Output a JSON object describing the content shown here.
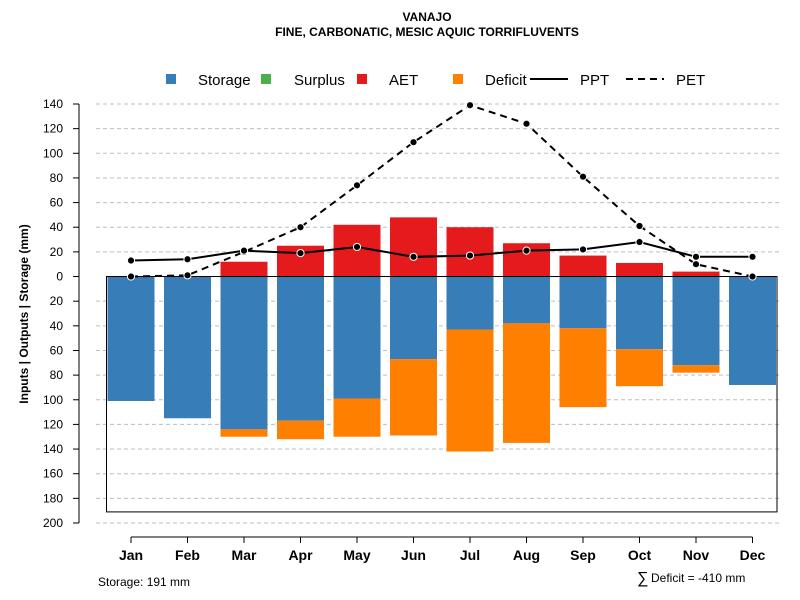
{
  "chart_data": {
    "type": "bar",
    "title": "VANAJO",
    "subtitle": "FINE, CARBONATIC, MESIC AQUIC TORRIFLUVENTS",
    "ylabel": "Inputs | Outputs | Storage     (mm)",
    "categories": [
      "Jan",
      "Feb",
      "Mar",
      "Apr",
      "May",
      "Jun",
      "Jul",
      "Aug",
      "Sep",
      "Oct",
      "Nov",
      "Dec"
    ],
    "ylim": [
      -200,
      140
    ],
    "yticks": [
      140,
      120,
      100,
      80,
      60,
      40,
      20,
      0,
      -20,
      -40,
      -60,
      -80,
      -100,
      -120,
      -140,
      -160,
      -180,
      -200
    ],
    "ytick_labels": [
      "140",
      "120",
      "100",
      "80",
      "60",
      "40",
      "20",
      "0",
      "20",
      "40",
      "60",
      "80",
      "100",
      "120",
      "140",
      "160",
      "180",
      "200"
    ],
    "legend": {
      "placement": "top",
      "entries": [
        {
          "label": "Storage",
          "kind": "box",
          "color": "#377EB8"
        },
        {
          "label": "Surplus",
          "kind": "box",
          "color": "#4DAF4A"
        },
        {
          "label": "AET",
          "kind": "box",
          "color": "#E41A1C"
        },
        {
          "label": "Deficit",
          "kind": "box",
          "color": "#FF7F00"
        },
        {
          "label": "PPT",
          "kind": "solid"
        },
        {
          "label": "PET",
          "kind": "dashed"
        }
      ]
    },
    "series": [
      {
        "name": "AET",
        "color": "#E41A1C",
        "values": [
          0,
          0,
          12,
          25,
          42,
          48,
          40,
          27,
          17,
          11,
          4,
          0
        ]
      },
      {
        "name": "Storage",
        "color": "#377EB8",
        "values": [
          101,
          115,
          124,
          117,
          99,
          67,
          43,
          38,
          42,
          59,
          72,
          88
        ]
      },
      {
        "name": "Deficit",
        "color": "#FF7F00",
        "values": [
          0,
          0,
          6,
          15,
          31,
          62,
          99,
          97,
          64,
          30,
          6,
          0
        ]
      },
      {
        "name": "PPT",
        "style": "solid",
        "values": [
          13,
          14,
          21,
          19,
          24,
          16,
          17,
          21,
          22,
          28,
          16,
          16
        ]
      },
      {
        "name": "PET",
        "style": "dashed",
        "values": [
          0,
          1,
          20,
          40,
          74,
          109,
          139,
          124,
          81,
          41,
          10,
          0
        ]
      }
    ],
    "storage_capacity": 191
  },
  "footer": {
    "storage_label": "Storage: 191 mm",
    "deficit_symbol": "∑",
    "deficit_label": "Deficit = -410 mm"
  }
}
